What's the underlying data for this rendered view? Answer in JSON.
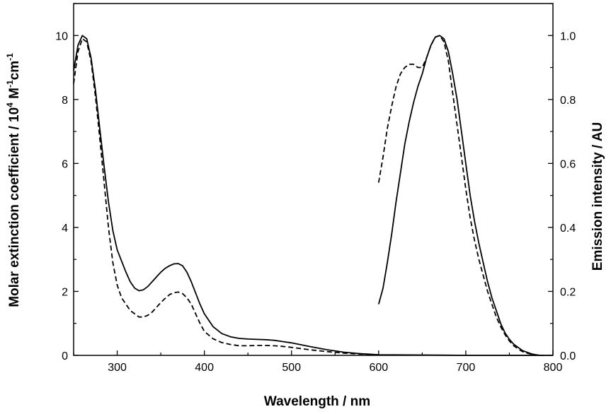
{
  "chart_data": {
    "type": "line",
    "title": "",
    "xlabel": "Wavelength / nm",
    "ylabel_left": {
      "main": "Molar extinction coefficient / 10",
      "sup1": "4",
      "mid": " M",
      "sup2": "-1",
      "end": "cm",
      "sup3": "-1"
    },
    "ylabel_right": "Emission intensity / AU",
    "xlim": [
      250,
      800
    ],
    "ylim_left": [
      0,
      11
    ],
    "ylim_right": [
      0,
      1.1
    ],
    "x_ticks": [
      "300",
      "400",
      "500",
      "600",
      "700",
      "800"
    ],
    "y_ticks_left": [
      "0",
      "2",
      "4",
      "6",
      "8",
      "10"
    ],
    "y_ticks_right": [
      "0.0",
      "0.2",
      "0.4",
      "0.6",
      "0.8",
      "1.0"
    ],
    "grid": false,
    "legend": "none",
    "series": [
      {
        "style": "solid",
        "axis": "left",
        "x": [
          250,
          255,
          260,
          265,
          270,
          275,
          280,
          285,
          290,
          295,
          300,
          305,
          310,
          315,
          320,
          325,
          330,
          335,
          340,
          345,
          350,
          355,
          360,
          365,
          370,
          375,
          380,
          385,
          390,
          395,
          400,
          410,
          420,
          430,
          440,
          450,
          460,
          470,
          480,
          490,
          500,
          520,
          540,
          560,
          580,
          600,
          650,
          700,
          750,
          800
        ],
        "y": [
          8.9,
          9.7,
          10.0,
          9.9,
          9.3,
          8.3,
          7.1,
          5.9,
          4.8,
          3.9,
          3.3,
          2.95,
          2.6,
          2.3,
          2.1,
          2.02,
          2.05,
          2.15,
          2.3,
          2.45,
          2.6,
          2.72,
          2.8,
          2.86,
          2.87,
          2.8,
          2.6,
          2.3,
          1.95,
          1.6,
          1.3,
          0.9,
          0.68,
          0.58,
          0.53,
          0.51,
          0.5,
          0.49,
          0.47,
          0.43,
          0.39,
          0.28,
          0.18,
          0.1,
          0.05,
          0.02,
          0.01,
          0.0,
          0.0,
          0.0
        ]
      },
      {
        "style": "dashed",
        "axis": "left",
        "x": [
          250,
          255,
          260,
          265,
          270,
          275,
          280,
          285,
          290,
          295,
          300,
          305,
          310,
          315,
          320,
          325,
          330,
          335,
          340,
          345,
          350,
          355,
          360,
          365,
          370,
          375,
          380,
          385,
          390,
          395,
          400,
          410,
          420,
          430,
          440,
          450,
          460,
          470,
          480,
          490,
          500,
          520,
          540,
          560,
          580,
          600
        ],
        "y": [
          8.5,
          9.5,
          9.9,
          9.8,
          9.2,
          8.1,
          6.8,
          5.4,
          4.0,
          2.9,
          2.2,
          1.8,
          1.6,
          1.4,
          1.3,
          1.2,
          1.2,
          1.25,
          1.35,
          1.5,
          1.65,
          1.78,
          1.9,
          1.96,
          1.98,
          1.93,
          1.8,
          1.6,
          1.3,
          1.0,
          0.75,
          0.52,
          0.4,
          0.34,
          0.3,
          0.3,
          0.31,
          0.31,
          0.3,
          0.28,
          0.25,
          0.18,
          0.12,
          0.07,
          0.04,
          0.02
        ]
      },
      {
        "style": "solid",
        "axis": "right",
        "x": [
          600,
          605,
          610,
          615,
          620,
          625,
          630,
          635,
          640,
          645,
          650,
          655,
          660,
          665,
          670,
          675,
          680,
          685,
          690,
          695,
          700,
          705,
          710,
          715,
          720,
          725,
          730,
          735,
          740,
          745,
          750,
          755,
          760,
          765,
          770,
          775,
          780,
          785,
          790
        ],
        "y": [
          0.16,
          0.21,
          0.29,
          0.38,
          0.48,
          0.57,
          0.66,
          0.73,
          0.79,
          0.84,
          0.88,
          0.93,
          0.97,
          0.995,
          1.0,
          0.99,
          0.95,
          0.88,
          0.8,
          0.7,
          0.6,
          0.5,
          0.42,
          0.35,
          0.29,
          0.23,
          0.18,
          0.14,
          0.1,
          0.07,
          0.05,
          0.035,
          0.025,
          0.015,
          0.01,
          0.005,
          0.002,
          0.0,
          0.0
        ]
      },
      {
        "style": "dashed",
        "axis": "right",
        "x": [
          600,
          605,
          610,
          615,
          620,
          625,
          630,
          635,
          640,
          645,
          650,
          655,
          660,
          665,
          670,
          675,
          680,
          685,
          690,
          695,
          700,
          705,
          710,
          715,
          720,
          725,
          730,
          735,
          740,
          745,
          750,
          755,
          760,
          765,
          770,
          775,
          780,
          785,
          790
        ],
        "y": [
          0.54,
          0.62,
          0.71,
          0.78,
          0.84,
          0.88,
          0.9,
          0.91,
          0.91,
          0.9,
          0.9,
          0.93,
          0.97,
          0.995,
          1.0,
          0.98,
          0.92,
          0.82,
          0.72,
          0.62,
          0.52,
          0.43,
          0.36,
          0.3,
          0.25,
          0.2,
          0.16,
          0.12,
          0.09,
          0.065,
          0.045,
          0.03,
          0.02,
          0.012,
          0.007,
          0.004,
          0.002,
          0.0,
          0.0
        ]
      }
    ]
  }
}
